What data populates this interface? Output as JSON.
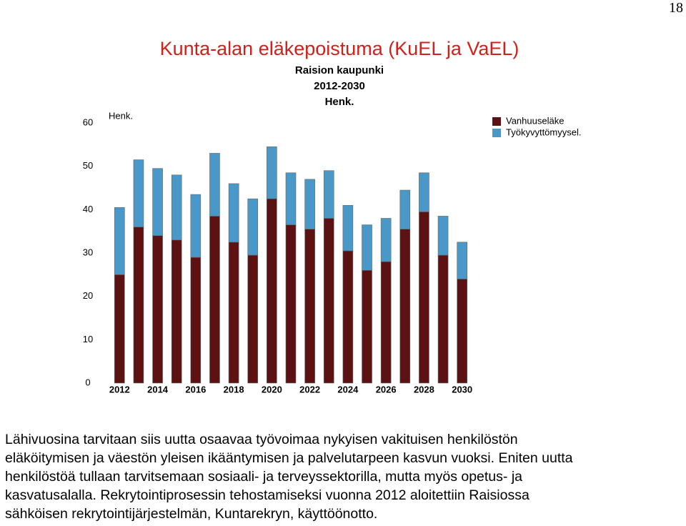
{
  "page_number": "18",
  "chart_data": {
    "type": "stacked_bar",
    "title": "Kunta-alan eläkepoistuma (KuEL ja VaEL)",
    "subtitle": [
      "Raision kaupunki",
      "2012-2030",
      "Henk."
    ],
    "y_label": "Henk.",
    "categories": [
      "2012",
      null,
      "2014",
      null,
      "2016",
      null,
      "2018",
      null,
      "2020",
      null,
      "2022",
      null,
      "2024",
      null,
      "2026",
      null,
      "2028",
      null,
      "2030"
    ],
    "series": [
      {
        "name": "Vanhuuseläke",
        "color": "#5c1212",
        "values": [
          25,
          36,
          34,
          33,
          29,
          38.5,
          32.5,
          29.5,
          42.5,
          36.5,
          35.5,
          38,
          30.5,
          26,
          28,
          35.5,
          39.5,
          29.5,
          24
        ]
      },
      {
        "name": "Työkyvyttömyysel.",
        "color": "#4a98c8",
        "values": [
          15.5,
          15.5,
          15.5,
          15,
          14.5,
          14.5,
          13.5,
          13,
          12,
          12,
          11.5,
          11,
          10.5,
          10.5,
          10,
          9,
          9,
          9,
          8.5
        ]
      }
    ],
    "ylim": [
      0,
      60
    ],
    "yticks": [
      0,
      10,
      20,
      30,
      40,
      50,
      60
    ],
    "grid": false,
    "legend": "top-right"
  },
  "paragraph": [
    "Lähivuosina tarvitaan siis uutta osaavaa työvoimaa nykyisen vakituisen henkilöstön",
    "eläköitymisen ja väestön yleisen ikääntymisen ja palvelutarpeen kasvun vuoksi. Eniten uutta",
    "henkilöstöä tullaan tarvitsemaan sosiaali- ja terveyssektorilla, mutta myös opetus- ja",
    "kasvatusalalla. Rekrytointiprosessin tehostamiseksi vuonna 2012 aloitettiin Raisiossa",
    "sähköisen rekrytointijärjestelmän, Kuntarekryn, käyttöönotto."
  ]
}
